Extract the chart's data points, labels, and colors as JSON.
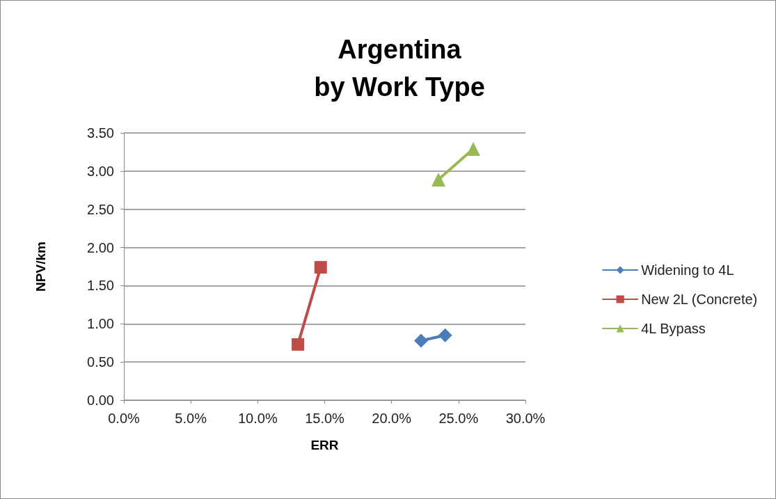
{
  "chart_data": {
    "type": "line",
    "title": "Argentina\nby Work Type",
    "xlabel": "ERR",
    "ylabel": "NPV/km",
    "series": [
      {
        "name": "Widening to 4L",
        "color": "#4a7ebb",
        "marker": "diamond",
        "x": [
          0.222,
          0.24
        ],
        "values": [
          0.78,
          0.85
        ]
      },
      {
        "name": "New 2L (Concrete)",
        "color": "#be4b48",
        "marker": "square",
        "x": [
          0.13,
          0.147
        ],
        "values": [
          0.73,
          1.74
        ]
      },
      {
        "name": "4L Bypass",
        "color": "#98b954",
        "marker": "triangle",
        "x": [
          0.235,
          0.261
        ],
        "values": [
          2.89,
          3.29
        ]
      }
    ],
    "xlim": [
      0,
      0.3
    ],
    "xticks": [
      {
        "value": 0,
        "label": "0.0%"
      },
      {
        "value": 0.05,
        "label": "5.0%"
      },
      {
        "value": 0.1,
        "label": "10.0%"
      },
      {
        "value": 0.15,
        "label": "15.0%"
      },
      {
        "value": 0.2,
        "label": "20.0%"
      },
      {
        "value": 0.25,
        "label": "25.0%"
      },
      {
        "value": 0.3,
        "label": "30.0%"
      }
    ],
    "ylim": [
      0,
      3.5
    ],
    "yticks": [
      {
        "value": 0,
        "label": "0.00"
      },
      {
        "value": 0.5,
        "label": "0.50"
      },
      {
        "value": 1,
        "label": "1.00"
      },
      {
        "value": 1.5,
        "label": "1.50"
      },
      {
        "value": 2,
        "label": "2.00"
      },
      {
        "value": 2.5,
        "label": "2.50"
      },
      {
        "value": 3,
        "label": "3.00"
      },
      {
        "value": 3.5,
        "label": "3.50"
      }
    ],
    "grid": "y",
    "legend": "right"
  }
}
